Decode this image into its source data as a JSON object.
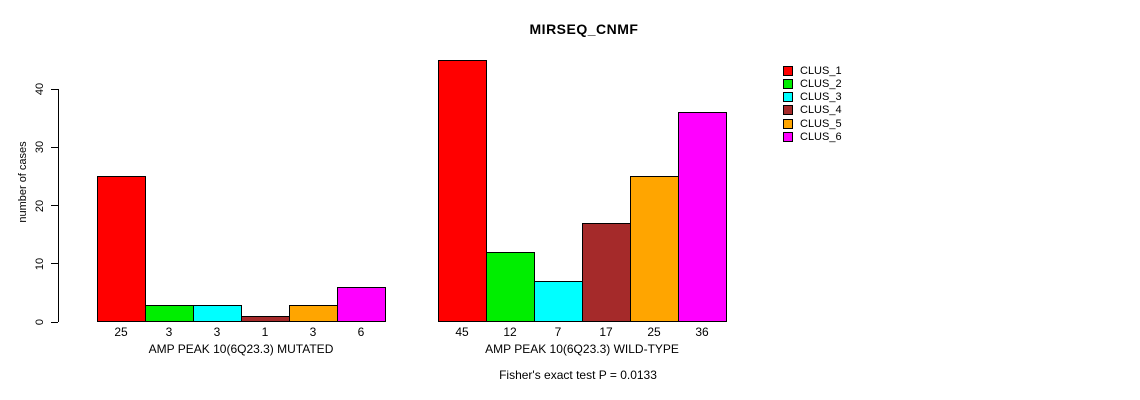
{
  "title": "MIRSEQ_CNMF",
  "y_axis": {
    "label": "number of cases",
    "ticks": [
      0,
      10,
      20,
      30,
      40
    ],
    "range": [
      0,
      45
    ]
  },
  "legend": {
    "position": "right",
    "items": [
      {
        "label": "CLUS_1",
        "color": "#FF0000"
      },
      {
        "label": "CLUS_2",
        "color": "#00EE00"
      },
      {
        "label": "CLUS_3",
        "color": "#00FFFF"
      },
      {
        "label": "CLUS_4",
        "color": "#A52A2A"
      },
      {
        "label": "CLUS_5",
        "color": "#FFA500"
      },
      {
        "label": "CLUS_6",
        "color": "#FF00FF"
      }
    ]
  },
  "footer": "Fisher's exact test P = 0.0133",
  "chart_data": [
    {
      "type": "bar",
      "title": "MIRSEQ_CNMF",
      "xlabel": "AMP PEAK 10(6Q23.3) MUTATED",
      "ylabel": "number of cases",
      "categories": [
        "CLUS_1",
        "CLUS_2",
        "CLUS_3",
        "CLUS_4",
        "CLUS_5",
        "CLUS_6"
      ],
      "values": [
        25,
        3,
        3,
        1,
        3,
        6
      ],
      "bar_labels": [
        "25",
        "3",
        "3",
        "1",
        "3",
        "6"
      ],
      "colors": [
        "#FF0000",
        "#00EE00",
        "#00FFFF",
        "#A52A2A",
        "#FFA500",
        "#FF00FF"
      ],
      "ylim": [
        0,
        45
      ],
      "grid": false,
      "legend_position": "right"
    },
    {
      "type": "bar",
      "title": "MIRSEQ_CNMF",
      "xlabel": "AMP PEAK 10(6Q23.3) WILD-TYPE",
      "ylabel": "number of cases",
      "categories": [
        "CLUS_1",
        "CLUS_2",
        "CLUS_3",
        "CLUS_4",
        "CLUS_5",
        "CLUS_6"
      ],
      "values": [
        45,
        12,
        7,
        17,
        25,
        36
      ],
      "bar_labels": [
        "45",
        "12",
        "7",
        "17",
        "25",
        "36"
      ],
      "colors": [
        "#FF0000",
        "#00EE00",
        "#00FFFF",
        "#A52A2A",
        "#FFA500",
        "#FF00FF"
      ],
      "ylim": [
        0,
        45
      ],
      "grid": false,
      "legend_position": "right"
    }
  ]
}
